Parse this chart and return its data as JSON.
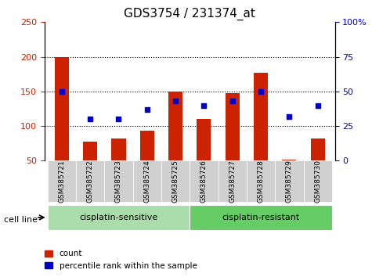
{
  "title": "GDS3754 / 231374_at",
  "samples": [
    "GSM385721",
    "GSM385722",
    "GSM385723",
    "GSM385724",
    "GSM385725",
    "GSM385726",
    "GSM385727",
    "GSM385728",
    "GSM385729",
    "GSM385730"
  ],
  "count_values": [
    200,
    78,
    82,
    93,
    150,
    110,
    147,
    177,
    52,
    82
  ],
  "percentile_values": [
    50,
    30,
    30,
    37,
    43,
    40,
    43,
    50,
    32,
    40
  ],
  "bar_color": "#cc2200",
  "dot_color": "#0000cc",
  "left_ylim": [
    50,
    250
  ],
  "left_yticks": [
    50,
    100,
    150,
    200,
    250
  ],
  "right_ylim": [
    0,
    100
  ],
  "right_yticks": [
    0,
    25,
    50,
    75,
    100
  ],
  "right_yticklabels": [
    "0",
    "25",
    "50",
    "75",
    "100%"
  ],
  "groups": [
    {
      "label": "cisplatin-sensitive",
      "start": 0,
      "end": 5,
      "color": "#aaddaa"
    },
    {
      "label": "cisplatin-resistant",
      "start": 5,
      "end": 10,
      "color": "#66cc66"
    }
  ],
  "group_label_prefix": "cell line",
  "grid_lines": [
    100,
    150,
    200
  ],
  "legend_count_label": "count",
  "legend_percentile_label": "percentile rank within the sample",
  "bar_bottom": 50,
  "dot_scale_factor": 2.5,
  "background_color": "#ffffff",
  "plot_bg_color": "#ffffff",
  "tick_label_area_color": "#d0d0d0"
}
